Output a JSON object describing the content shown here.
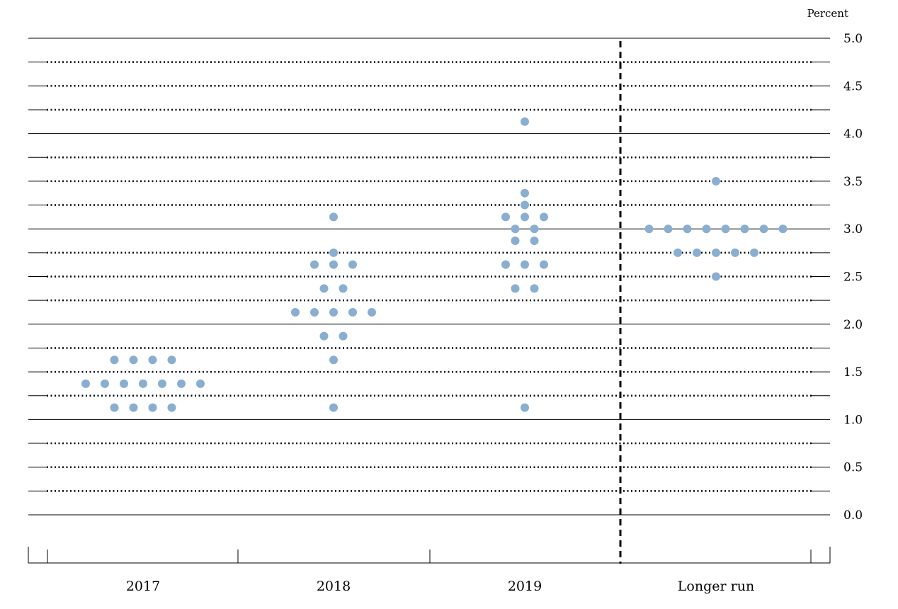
{
  "chart_data": {
    "type": "scatter",
    "title": "",
    "ylabel": "Percent",
    "ylim": [
      0,
      5
    ],
    "ytick_step": 0.25,
    "ytick_labels": [
      "5.0",
      "4.5",
      "4.0",
      "3.5",
      "3.0",
      "2.5",
      "2.0",
      "1.5",
      "1.0",
      "0.5",
      "0.0"
    ],
    "categories": [
      "2017",
      "2018",
      "2019",
      "Longer run"
    ],
    "grid": true,
    "divider_after": "2019",
    "dot_color": "#8aaed0",
    "series": [
      {
        "category": "2017",
        "values": [
          1.125,
          1.125,
          1.125,
          1.125,
          1.375,
          1.375,
          1.375,
          1.375,
          1.375,
          1.375,
          1.375,
          1.625,
          1.625,
          1.625,
          1.625
        ]
      },
      {
        "category": "2018",
        "values": [
          1.125,
          1.625,
          1.875,
          1.875,
          2.125,
          2.125,
          2.125,
          2.125,
          2.125,
          2.375,
          2.375,
          2.625,
          2.625,
          2.625,
          2.75,
          3.125
        ]
      },
      {
        "category": "2019",
        "values": [
          1.125,
          2.375,
          2.375,
          2.625,
          2.625,
          2.625,
          2.875,
          2.875,
          3.0,
          3.0,
          3.125,
          3.125,
          3.125,
          3.25,
          3.375,
          4.125
        ]
      },
      {
        "category": "Longer run",
        "values": [
          2.5,
          2.75,
          2.75,
          2.75,
          2.75,
          2.75,
          3.0,
          3.0,
          3.0,
          3.0,
          3.0,
          3.0,
          3.0,
          3.0,
          3.5
        ]
      }
    ]
  }
}
